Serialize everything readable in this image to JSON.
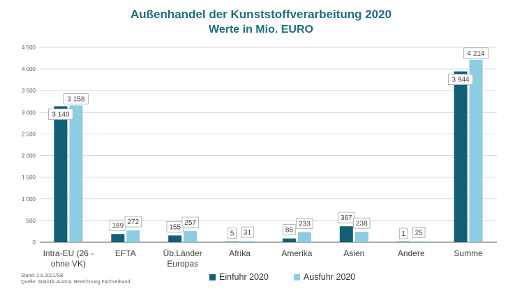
{
  "title": "Außenhandel der Kunststoffverarbeitung 2020",
  "subtitle": "Werte in Mio. EURO",
  "colors": {
    "einfuhr": "#145f78",
    "ausfuhr": "#8dcde3",
    "grid": "#d9d9d9",
    "axis": "#595959"
  },
  "chart_data": {
    "type": "bar",
    "title": "Außenhandel der Kunststoffverarbeitung 2020",
    "subtitle": "Werte in Mio. EURO",
    "categories": [
      "Intra-EU (26 - ohne VK)",
      "EFTA",
      "Üb.Länder Europas",
      "Afrika",
      "Amerika",
      "Asien",
      "Andere",
      "Summe"
    ],
    "category_lines": [
      [
        "Intra-EU (26 -",
        "ohne VK)"
      ],
      [
        "EFTA"
      ],
      [
        "Üb.Länder",
        "Europas"
      ],
      [
        "Afrika"
      ],
      [
        "Amerika"
      ],
      [
        "Asien"
      ],
      [
        "Andere"
      ],
      [
        "Summe"
      ]
    ],
    "series": [
      {
        "name": "Einfuhr 2020",
        "values": [
          3140,
          189,
          155,
          5,
          86,
          367,
          1,
          3944
        ]
      },
      {
        "name": "Ausfuhr 2020",
        "values": [
          3158,
          272,
          257,
          31,
          233,
          238,
          25,
          4214
        ]
      }
    ],
    "data_labels": [
      [
        "3 140",
        "189",
        "155",
        "5",
        "86",
        "367",
        "1",
        "3 944"
      ],
      [
        "3 158",
        "272",
        "257",
        "31",
        "233",
        "238",
        "25",
        "4 214"
      ]
    ],
    "ylim": [
      0,
      4500
    ],
    "yticks": [
      0,
      500,
      1000,
      1500,
      2000,
      2500,
      3000,
      3500,
      4000,
      4500
    ],
    "ytick_labels": [
      "0",
      "500",
      "1 000",
      "1 500",
      "2 000",
      "2 500",
      "3 000",
      "3 500",
      "4 000",
      "4 500"
    ],
    "grid": true,
    "legend": "bottom"
  },
  "footnote": {
    "stand": "Stand: 2.8.2021/SB",
    "quelle": "Quelle: Statistik Austria; Berechnung Fachverband"
  }
}
